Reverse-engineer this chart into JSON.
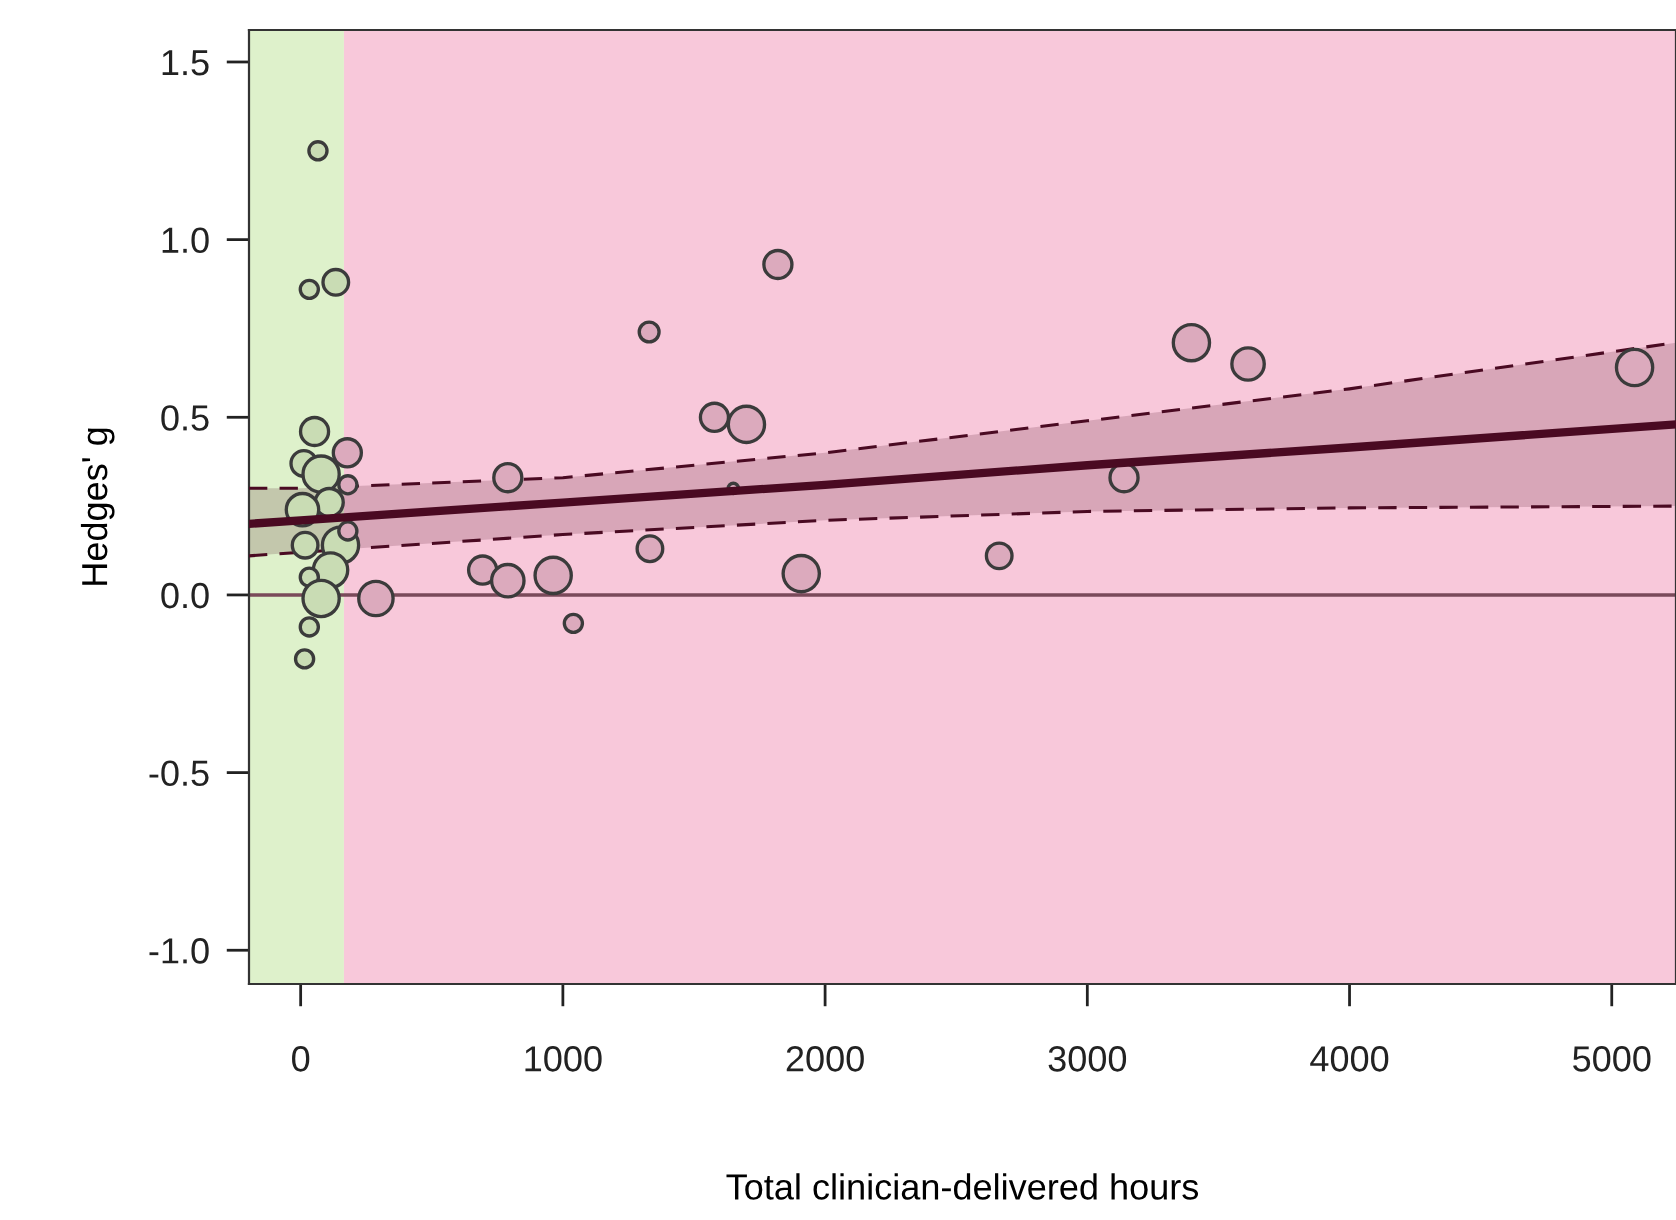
{
  "chart_data": {
    "type": "bubble",
    "xlabel": "Total clinician-delivered hours",
    "ylabel": "Hedges' g",
    "xlim": [
      -197,
      5245
    ],
    "ylim": [
      -1.095,
      1.59
    ],
    "xticks": [
      0,
      1000,
      2000,
      3000,
      4000,
      5000
    ],
    "yticks": [
      {
        "value": -1.0,
        "label": "-1.0"
      },
      {
        "value": -0.5,
        "label": "-0.5"
      },
      {
        "value": 0.0,
        "label": "0.0"
      },
      {
        "value": 0.5,
        "label": "0.5"
      },
      {
        "value": 1.0,
        "label": "1.0"
      },
      {
        "value": 1.5,
        "label": "1.5"
      }
    ],
    "grid": false,
    "legend": false,
    "marker": "circle",
    "bands": [
      {
        "axis": "x",
        "from": -197,
        "to": 165,
        "color": "#def1cb"
      },
      {
        "axis": "x",
        "from": 165,
        "to": 5245,
        "color": "#f8c8da"
      }
    ],
    "ref_lines": [
      {
        "axis": "y",
        "value": 0,
        "color": "#7a4a5a",
        "line_style": "solid"
      }
    ],
    "series": [
      {
        "color": "#c9dcb4",
        "x": [
          66,
          33,
          134,
          53,
          12,
          78,
          109,
          7,
          17,
          152,
          114,
          33,
          78,
          33,
          15
        ],
        "values": [
          1.25,
          0.86,
          0.88,
          0.46,
          0.37,
          0.34,
          0.26,
          0.24,
          0.14,
          0.14,
          0.07,
          0.05,
          -0.01,
          -0.09,
          -0.18
        ],
        "sizes": [
          0.25,
          0.25,
          0.5,
          0.6,
          0.5,
          1,
          0.6,
          0.8,
          0.5,
          1,
          0.9,
          0.25,
          1,
          0.25,
          0.25
        ]
      },
      {
        "color": "#dcaabd",
        "x": [
          178,
          180,
          180,
          287,
          790,
          694,
          790,
          963,
          1040,
          1820,
          1329,
          1578,
          1700,
          1650,
          1332,
          1909,
          2664,
          3397,
          3613,
          3140,
          5087
        ],
        "values": [
          0.4,
          0.31,
          0.18,
          -0.01,
          0.33,
          0.07,
          0.04,
          0.055,
          -0.08,
          0.93,
          0.74,
          0.5,
          0.48,
          0.3,
          0.13,
          0.06,
          0.11,
          0.71,
          0.65,
          0.33,
          0.64
        ],
        "sizes": [
          0.6,
          0.25,
          0.25,
          0.9,
          0.6,
          0.6,
          0.8,
          1,
          0.25,
          0.6,
          0.3,
          0.6,
          1,
          0.08,
          0.5,
          1,
          0.5,
          1,
          0.8,
          0.6,
          1
        ]
      },
      {
        "type": "line",
        "color": "#4a0a22",
        "line_style": "solid",
        "marker": "none",
        "x": [
          -197,
          0,
          1000,
          2000,
          3000,
          4000,
          5245
        ],
        "values": [
          0.2,
          0.21,
          0.26,
          0.31,
          0.365,
          0.415,
          0.48
        ],
        "lower": [
          0.11,
          0.12,
          0.17,
          0.21,
          0.235,
          0.245,
          0.25
        ],
        "upper": [
          0.3,
          0.3,
          0.33,
          0.4,
          0.49,
          0.58,
          0.71
        ]
      },
      {
        "type": "line",
        "color": "#4a0a22",
        "line_style": "dashed",
        "marker": "none",
        "x": [
          -197,
          0,
          1000,
          2000,
          3000,
          4000,
          5245
        ],
        "values": [
          0.11,
          0.12,
          0.17,
          0.21,
          0.235,
          0.245,
          0.25
        ]
      },
      {
        "type": "line",
        "color": "#4a0a22",
        "line_style": "dashed",
        "marker": "none",
        "x": [
          -197,
          0,
          1000,
          2000,
          3000,
          4000,
          5245
        ],
        "values": [
          0.3,
          0.3,
          0.33,
          0.4,
          0.49,
          0.58,
          0.71
        ]
      }
    ]
  }
}
